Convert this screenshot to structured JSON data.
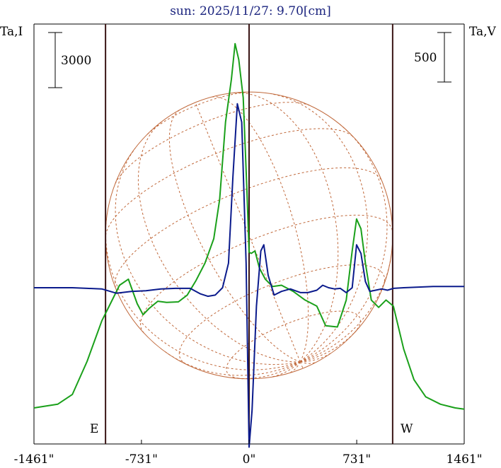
{
  "chart_data": {
    "type": "line",
    "title": "sun: 2025/11/27: 9.70[cm]",
    "left_axis_label": "Ta,I",
    "right_axis_label": "Ta,V",
    "left_scale_label": "3000",
    "right_scale_label": "500",
    "east_label": "E",
    "west_label": "W",
    "x_tick_labels": [
      "-1461\"",
      "-731\"",
      "0\"",
      "731\"",
      "1461\""
    ],
    "x_ticks": [
      -1461,
      -731,
      0,
      731,
      1461
    ],
    "xlim": [
      -1461,
      1461
    ],
    "limb_positions": [
      -975,
      975
    ],
    "grid": false,
    "colors": {
      "intensity": "#1aa01a",
      "polarization": "#0a1a8c",
      "disk": "#c0683a",
      "limb": "#3a1515"
    },
    "series": [
      {
        "key": "I",
        "x": [
          -1461,
          -1300,
          -1200,
          -1100,
          -1000,
          -950,
          -880,
          -820,
          -760,
          -720,
          -680,
          -620,
          -560,
          -480,
          -420,
          -360,
          -300,
          -240,
          -200,
          -160,
          -120,
          -95,
          -70,
          -40,
          -15,
          0,
          15,
          40,
          70,
          110,
          160,
          220,
          300,
          380,
          460,
          520,
          600,
          660,
          700,
          730,
          760,
          790,
          830,
          880,
          930,
          980,
          1050,
          1120,
          1200,
          1300,
          1400,
          1461
        ],
        "y": [
          -980,
          -950,
          -870,
          -600,
          -270,
          -150,
          20,
          70,
          -130,
          -220,
          -170,
          -110,
          -120,
          -115,
          -60,
          60,
          200,
          400,
          720,
          1350,
          1700,
          1990,
          1860,
          1550,
          800,
          290,
          280,
          300,
          160,
          70,
          10,
          20,
          -30,
          -100,
          -150,
          -310,
          -320,
          -100,
          300,
          560,
          480,
          200,
          -100,
          -160,
          -100,
          -150,
          -500,
          -750,
          -890,
          -950,
          -980,
          -990
        ]
      },
      {
        "key": "V",
        "x": [
          -1461,
          -1200,
          -1100,
          -1000,
          -900,
          -800,
          -700,
          -600,
          -500,
          -400,
          -330,
          -280,
          -230,
          -180,
          -140,
          -110,
          -80,
          -50,
          -20,
          0,
          20,
          50,
          80,
          100,
          130,
          170,
          220,
          280,
          350,
          400,
          460,
          500,
          540,
          580,
          620,
          660,
          700,
          730,
          760,
          790,
          820,
          860,
          900,
          940,
          980,
          1050,
          1150,
          1250,
          1461
        ],
        "y": [
          0,
          0,
          -5,
          -10,
          -45,
          -30,
          -25,
          -10,
          -5,
          -5,
          -50,
          -70,
          -60,
          0,
          200,
          900,
          1500,
          1350,
          200,
          -1300,
          -1000,
          -150,
          300,
          350,
          100,
          -60,
          -30,
          -10,
          -40,
          -40,
          -20,
          20,
          0,
          -10,
          -5,
          -40,
          0,
          350,
          280,
          50,
          -30,
          -20,
          -10,
          -20,
          -5,
          0,
          5,
          10,
          10
        ]
      }
    ]
  }
}
